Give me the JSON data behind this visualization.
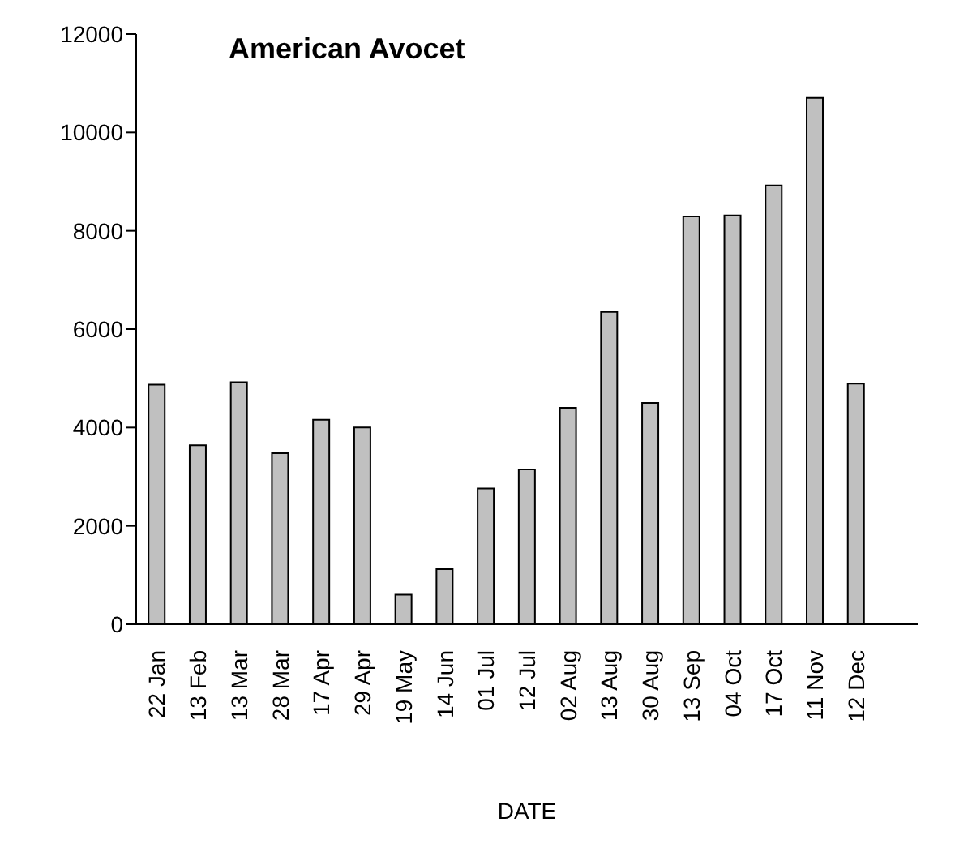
{
  "chart_data": {
    "type": "bar",
    "title": "American Avocet",
    "xlabel": "DATE",
    "categories": [
      "22 Jan",
      "13 Feb",
      "13 Mar",
      "28 Mar",
      "17 Apr",
      "29 Apr",
      "19 May",
      "14 Jun",
      "01 Jul",
      "12 Jul",
      "02 Aug",
      "13 Aug",
      "30 Aug",
      "13 Sep",
      "04 Oct",
      "17 Oct",
      "11 Nov",
      "12 Dec",
      null
    ],
    "values": [
      4870,
      3640,
      4920,
      3480,
      4160,
      4000,
      600,
      1120,
      2760,
      3150,
      4400,
      6350,
      4500,
      8290,
      8310,
      8920,
      10700,
      4890,
      null
    ],
    "color": "#c0c0c0",
    "ylim": [
      0,
      12000
    ],
    "yticks": [
      0,
      2000,
      4000,
      6000,
      8000,
      10000,
      12000
    ],
    "grid": false,
    "legend": false
  }
}
